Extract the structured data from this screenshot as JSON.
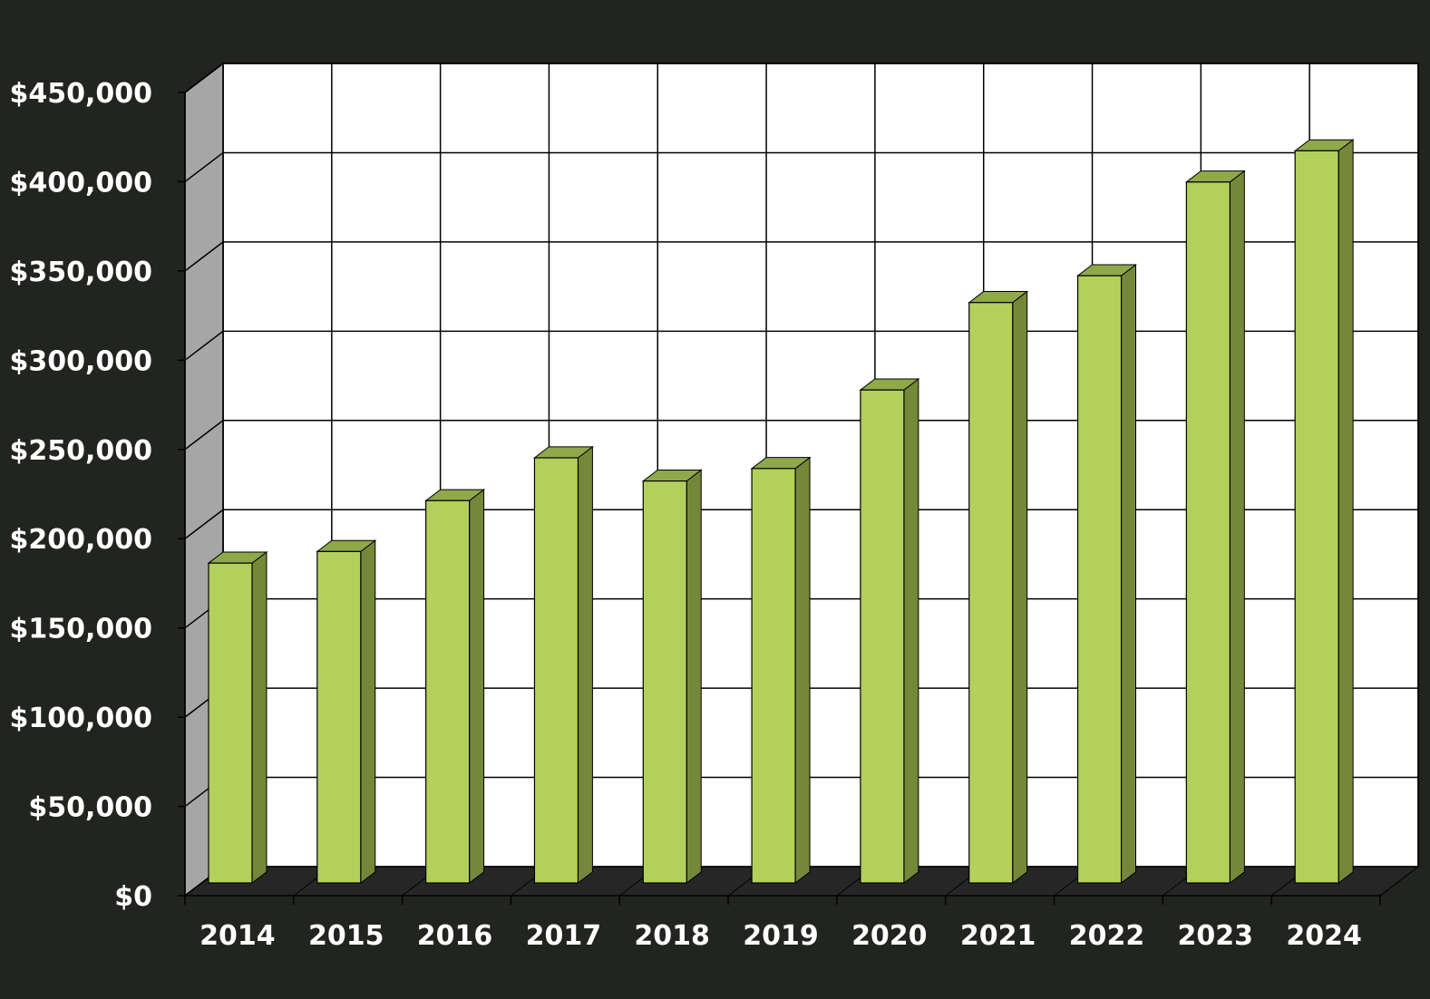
{
  "colors": {
    "background": "#222420",
    "plot_back_wall": "#ffffff",
    "side_wall": "#a6a6a6",
    "floor": "#262626",
    "grid_line": "#000000",
    "bar_front": "#b3d05c",
    "bar_side": "#74883a",
    "bar_top": "#8fa84a",
    "text": "#ffffff"
  },
  "chart_data": {
    "type": "bar",
    "style": "3d-column",
    "title": "",
    "xlabel": "",
    "ylabel": "",
    "categories": [
      "2014",
      "2015",
      "2016",
      "2017",
      "2018",
      "2019",
      "2020",
      "2021",
      "2022",
      "2023",
      "2024"
    ],
    "series": [
      {
        "values": [
          179000,
          185500,
          214000,
          238000,
          225000,
          232000,
          276000,
          325000,
          340000,
          392500,
          410000
        ]
      }
    ],
    "ylim": [
      0,
      450000
    ],
    "yticks": [
      0,
      50000,
      100000,
      150000,
      200000,
      250000,
      300000,
      350000,
      400000,
      450000
    ],
    "ytick_labels": [
      "$0",
      "$50,000",
      "$100,000",
      "$150,000",
      "$200,000",
      "$250,000",
      "$300,000",
      "$350,000",
      "$400,000",
      "$450,000"
    ],
    "grid": true,
    "legend": "none"
  }
}
